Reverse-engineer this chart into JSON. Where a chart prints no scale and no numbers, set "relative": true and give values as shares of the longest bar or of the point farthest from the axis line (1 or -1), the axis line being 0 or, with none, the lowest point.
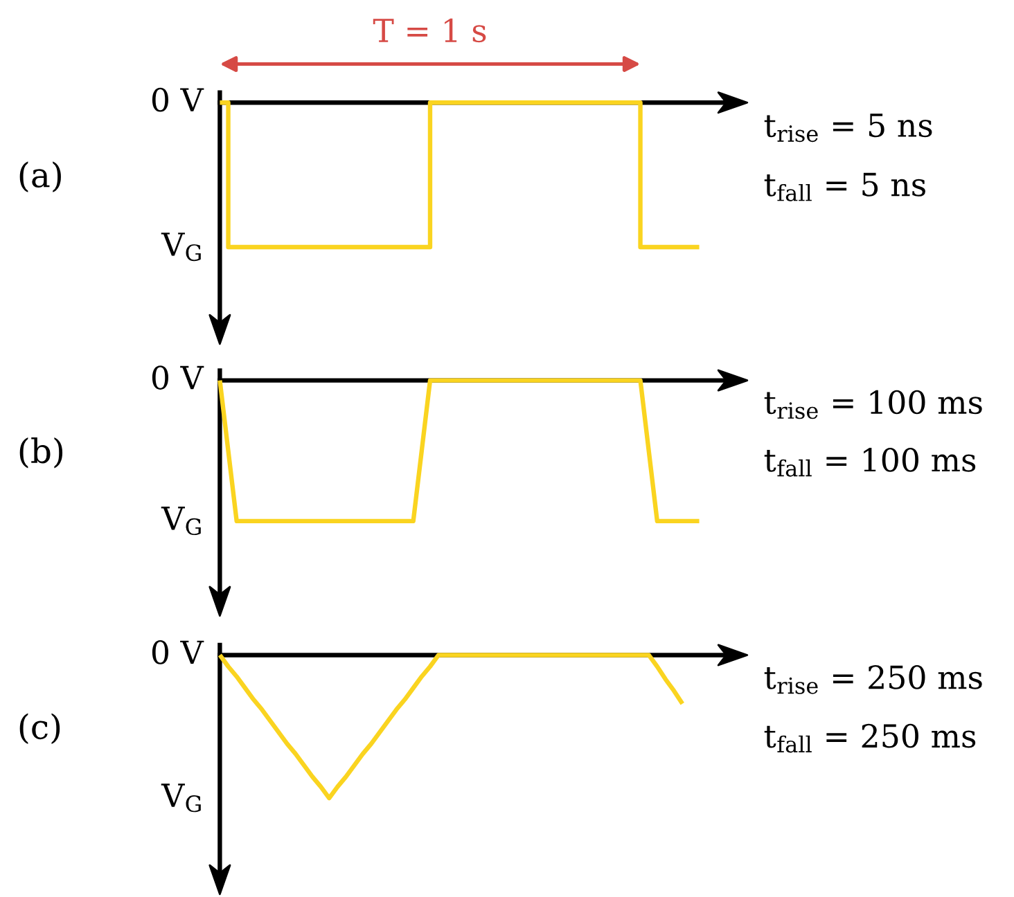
{
  "chart_data": [
    {
      "type": "step",
      "title": "(a)",
      "relative": true,
      "categories": [
        null,
        null,
        null,
        null,
        null,
        null,
        null,
        null,
        null,
        null,
        null,
        null,
        null,
        null,
        null,
        null,
        null,
        null,
        null,
        null,
        null,
        null,
        null,
        null,
        null,
        null,
        null,
        null,
        null,
        null,
        null,
        null,
        null,
        null,
        null,
        null,
        null,
        null,
        null,
        null,
        null,
        null,
        null,
        null,
        null,
        null,
        null,
        null,
        null,
        null,
        null,
        null,
        null,
        null,
        null,
        null,
        null,
        null
      ],
      "values": [
        0,
        -1,
        -1,
        -1,
        -1,
        -1,
        -1,
        -1,
        -1,
        -1,
        -1,
        -1,
        -1,
        -1,
        -1,
        -1,
        -1,
        -1,
        -1,
        -1,
        -1,
        -1,
        -1,
        -1,
        -1,
        0,
        0,
        0,
        0,
        0,
        0,
        0,
        0,
        0,
        0,
        0,
        0,
        0,
        0,
        0,
        0,
        0,
        0,
        0,
        0,
        0,
        0,
        0,
        0,
        0,
        -1,
        -1,
        -1,
        -1,
        -1,
        -1,
        -1,
        -1
      ],
      "color": "#fad420",
      "annotations": [
        "0 V",
        "V$_{G}$",
        "T = 1 s",
        "t$_{rise}$ = 5 ns",
        "t$_{fall}$ = 5 ns"
      ]
    },
    {
      "type": "line",
      "title": "(b)",
      "relative": true,
      "categories": [
        null,
        null,
        null,
        null,
        null,
        null,
        null,
        null,
        null,
        null,
        null,
        null,
        null,
        null,
        null,
        null,
        null,
        null,
        null,
        null,
        null,
        null,
        null,
        null,
        null,
        null,
        null,
        null,
        null,
        null,
        null,
        null,
        null,
        null,
        null,
        null,
        null,
        null,
        null,
        null,
        null,
        null,
        null,
        null,
        null,
        null,
        null,
        null,
        null,
        null,
        null,
        null,
        null,
        null,
        null,
        null,
        null,
        null
      ],
      "values": [
        0,
        -0.5,
        -1,
        -1,
        -1,
        -1,
        -1,
        -1,
        -1,
        -1,
        -1,
        -1,
        -1,
        -1,
        -1,
        -1,
        -1,
        -1,
        -1,
        -1,
        -1,
        -1,
        -1,
        -1,
        -0.5,
        0,
        0,
        0,
        0,
        0,
        0,
        0,
        0,
        0,
        0,
        0,
        0,
        0,
        0,
        0,
        0,
        0,
        0,
        0,
        0,
        0,
        0,
        0,
        0,
        0,
        0,
        -0.5,
        -1,
        -1,
        -1,
        -1,
        -1,
        -1
      ],
      "color": "#fad420",
      "annotations": [
        "0 V",
        "V$_{G}$",
        "t$_{rise}$ = 100 ms",
        "t$_{fall}$ = 100 ms"
      ]
    },
    {
      "type": "line",
      "title": "(c)",
      "relative": true,
      "categories": [
        null,
        null,
        null,
        null,
        null,
        null,
        null,
        null,
        null,
        null,
        null,
        null,
        null,
        null,
        null,
        null,
        null,
        null,
        null,
        null,
        null,
        null,
        null,
        null,
        null,
        null,
        null,
        null,
        null,
        null,
        null,
        null,
        null,
        null,
        null,
        null,
        null,
        null,
        null,
        null,
        null,
        null,
        null,
        null,
        null,
        null,
        null,
        null,
        null,
        null,
        null,
        null,
        null,
        null,
        null,
        null,
        null,
        null
      ],
      "values": [
        0,
        -0.08,
        -0.15,
        -0.23,
        -0.31,
        -0.38,
        -0.46,
        -0.54,
        -0.62,
        -0.69,
        -0.77,
        -0.85,
        -0.92,
        -1,
        -0.92,
        -0.85,
        -0.77,
        -0.69,
        -0.62,
        -0.54,
        -0.46,
        -0.38,
        -0.31,
        -0.23,
        -0.15,
        -0.08,
        0,
        0,
        0,
        0,
        0,
        0,
        0,
        0,
        0,
        0,
        0,
        0,
        0,
        0,
        0,
        0,
        0,
        0,
        0,
        0,
        0,
        0,
        0,
        0,
        0,
        0,
        -0.08,
        -0.17,
        -0.25,
        -0.34,
        null,
        null
      ],
      "color": "#fad420",
      "annotations": [
        "0 V",
        "V$_{G}$",
        "t$_{rise}$ = 250 ms",
        "t$_{fall}$ = 250 ms"
      ]
    }
  ]
}
